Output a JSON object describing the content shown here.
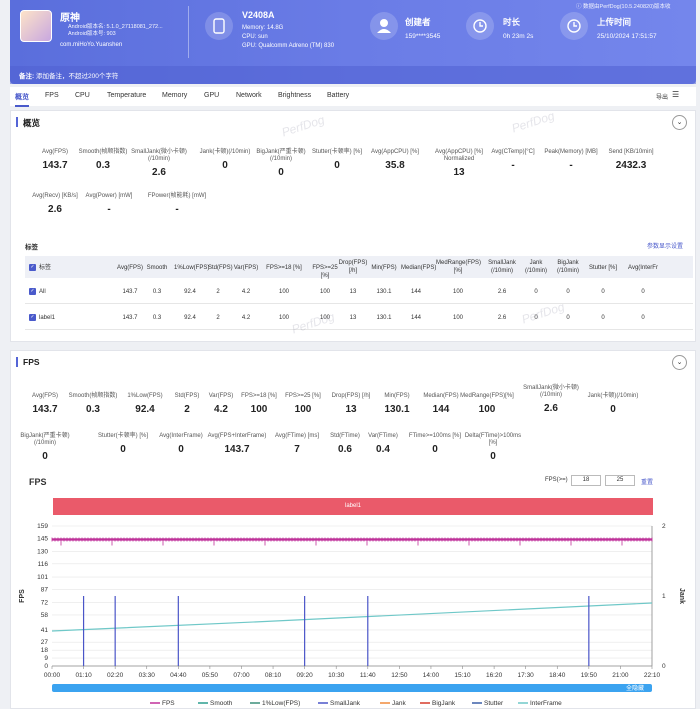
{
  "header": {
    "app_name": "原神",
    "android_version": "Android版本名: 5.1.0_27118081_272...",
    "android_build": "Android版本号: 903",
    "package": "com.miHoYo.Yuanshen",
    "device": "V2408A",
    "memory": "Memory: 14.8G",
    "cpu": "CPU: sun",
    "gpu": "GPU: Qualcomm Adreno (TM) 830",
    "creator_label": "创建者",
    "creator_value": "159****3545",
    "duration_label": "时长",
    "duration_value": "0h 23m 2s",
    "upload_label": "上传时间",
    "upload_value": "25/10/2024 17:51:57",
    "version_note": "数据由PerfDog(10.5.240820)版本收",
    "note_label": "备注:",
    "note_placeholder": "添加备注，不超过200个字符"
  },
  "tabs": [
    "概览",
    "FPS",
    "CPU",
    "Temperature",
    "Memory",
    "GPU",
    "Network",
    "Brightness",
    "Battery"
  ],
  "export_label": "导出",
  "watermark": "PerfDog",
  "overview": {
    "title": "概览",
    "stats": [
      {
        "label": "Avg(FPS)",
        "value": "143.7"
      },
      {
        "label": "Smooth(帧顺指数)",
        "value": "0.3"
      },
      {
        "label": "SmallJank(微小卡顿)(/10min)",
        "value": "2.6"
      },
      {
        "label": "Jank(卡顿)(/10min)",
        "value": "0"
      },
      {
        "label": "BigJank(严重卡顿)(/10min)",
        "value": "0"
      },
      {
        "label": "Stutter(卡顿率) [%]",
        "value": "0"
      },
      {
        "label": "Avg(AppCPU) [%]",
        "value": "35.8"
      },
      {
        "label": "Avg(AppCPU) [%] Normalized",
        "value": "13"
      },
      {
        "label": "Avg(CTemp)[°C]",
        "value": "-"
      },
      {
        "label": "Peak(Memory) [MB]",
        "value": "-"
      },
      {
        "label": "Send [KB/10min]",
        "value": "2432.3"
      },
      {
        "label": "Avg(Recv) [KB/s]",
        "value": "2.6"
      },
      {
        "label": "Avg(Power) [mW]",
        "value": "-"
      },
      {
        "label": "FPower(帧能耗) [mW]",
        "value": "-"
      }
    ],
    "label_section": "标签",
    "settings_link": "参数显示设置",
    "columns": [
      "标签",
      "Avg(FPS)",
      "Smooth",
      "1%Low(FPS)",
      "Std(FPS)",
      "Var(FPS)",
      "FPS>=18 [%]",
      "FPS>=25 [%]",
      "Drop(FPS) [/h]",
      "Min(FPS)",
      "Median(FPS)",
      "MedRange(FPS)[%]",
      "SmallJank (/10min)",
      "Jank (/10min)",
      "BigJank (/10min)",
      "Stutter [%]",
      "Avg(InterFr"
    ],
    "rows": [
      [
        "All",
        "143.7",
        "0.3",
        "92.4",
        "2",
        "4.2",
        "100",
        "100",
        "13",
        "130.1",
        "144",
        "100",
        "2.6",
        "0",
        "0",
        "0",
        "0"
      ],
      [
        "label1",
        "143.7",
        "0.3",
        "92.4",
        "2",
        "4.2",
        "100",
        "100",
        "13",
        "130.1",
        "144",
        "100",
        "2.6",
        "0",
        "0",
        "0",
        "0"
      ]
    ]
  },
  "fps": {
    "title": "FPS",
    "stats": [
      {
        "label": "Avg(FPS)",
        "value": "143.7"
      },
      {
        "label": "Smooth(帧顺指数)",
        "value": "0.3"
      },
      {
        "label": "1%Low(FPS)",
        "value": "92.4"
      },
      {
        "label": "Std(FPS)",
        "value": "2"
      },
      {
        "label": "Var(FPS)",
        "value": "4.2"
      },
      {
        "label": "FPS>=18 [%]",
        "value": "100"
      },
      {
        "label": "FPS>=25 [%]",
        "value": "100"
      },
      {
        "label": "Drop(FPS) [/h]",
        "value": "13"
      },
      {
        "label": "Min(FPS)",
        "value": "130.1"
      },
      {
        "label": "Median(FPS)",
        "value": "144"
      },
      {
        "label": "MedRange(FPS)[%]",
        "value": "100"
      },
      {
        "label": "SmallJank(微小卡顿)(/10min)",
        "value": "2.6"
      },
      {
        "label": "Jank(卡顿)(/10min)",
        "value": "0"
      },
      {
        "label": "BigJank(严重卡顿)(/10min)",
        "value": "0"
      },
      {
        "label": "Stutter(卡顿率) [%]",
        "value": "0"
      },
      {
        "label": "Avg(InterFrame)",
        "value": "0"
      },
      {
        "label": "Avg(FPS+InterFrame)",
        "value": "143.7"
      },
      {
        "label": "Avg(FTime) [ms]",
        "value": "7"
      },
      {
        "label": "Std(FTime)",
        "value": "0.6"
      },
      {
        "label": "Var(FTime)",
        "value": "0.4"
      },
      {
        "label": "FTime>=100ms [%]",
        "value": "0"
      },
      {
        "label": "Delta(FTime)>100ms [%]",
        "value": "0"
      }
    ],
    "chart_title": "FPS",
    "threshold_label": "FPS(>=)",
    "threshold_1": "18",
    "threshold_2": "25",
    "reset_label": "重置",
    "banner_label": "label1",
    "hide_all_label": "全隐藏"
  },
  "chart_data": {
    "type": "line",
    "ylabel": "FPS",
    "y2label": "Jank",
    "ylim": [
      0,
      159
    ],
    "y2lim": [
      0,
      2
    ],
    "yticks": [
      0,
      9,
      18,
      27,
      41,
      58,
      72,
      87,
      101,
      116,
      130,
      145,
      159
    ],
    "y2ticks": [
      0,
      1,
      2
    ],
    "xticks": [
      "00:00",
      "01:10",
      "02:20",
      "03:30",
      "04:40",
      "05:50",
      "07:00",
      "08:10",
      "09:20",
      "10:30",
      "11:40",
      "12:50",
      "14:00",
      "15:10",
      "16:20",
      "17:30",
      "18:40",
      "19:50",
      "21:00",
      "22:10"
    ],
    "series": [
      {
        "name": "FPS",
        "color": "#c0309a",
        "level": 143.7
      },
      {
        "name": "Smooth",
        "color": "#2a9d8f"
      },
      {
        "name": "1%Low(FPS)",
        "color": "#3a8f7a"
      },
      {
        "name": "SmallJank",
        "color": "#4a55c8"
      },
      {
        "name": "Jank",
        "color": "#f08a3c"
      },
      {
        "name": "BigJank",
        "color": "#d63a2a"
      },
      {
        "name": "Stutter",
        "color": "#3b5fa8"
      },
      {
        "name": "InterFrame",
        "color": "#6fc8c8"
      }
    ],
    "interframe_start": 0.5,
    "interframe_end": 0.9,
    "smalljank_times": [
      "01:10",
      "02:20",
      "04:40",
      "09:20",
      "11:40",
      "19:50"
    ],
    "grid": true,
    "legend": "bottom"
  }
}
